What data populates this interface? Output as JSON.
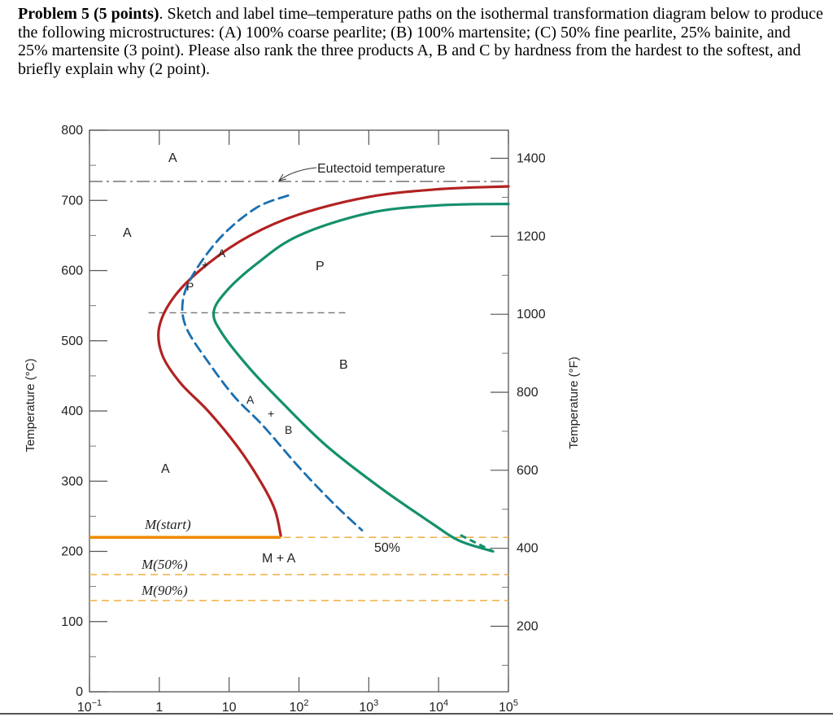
{
  "problem": {
    "heading": "Problem 5 (5 points)",
    "text": ". Sketch and label time–temperature paths on the isothermal transformation diagram below to produce the following microstructures: (A) 100% coarse pearlite; (B) 100% martensite; (C) 50% fine pearlite, 25% bainite, and 25% martensite (3 point). Please also rank the three products A, B and C by hardness from the hardest to the softest, and briefly explain why (2 point)."
  },
  "chart_data": {
    "type": "line",
    "xscale": "log",
    "xlim": [
      0.1,
      100000
    ],
    "ylim": [
      0,
      800
    ],
    "x_ticks": [
      {
        "value": 0.1,
        "base": "10",
        "exp": "−1"
      },
      {
        "value": 1,
        "base": "1",
        "exp": ""
      },
      {
        "value": 10,
        "base": "10",
        "exp": ""
      },
      {
        "value": 100,
        "base": "10",
        "exp": "2"
      },
      {
        "value": 1000,
        "base": "10",
        "exp": "3"
      },
      {
        "value": 10000,
        "base": "10",
        "exp": "4"
      },
      {
        "value": 100000,
        "base": "10",
        "exp": "5"
      }
    ],
    "y_ticks_c": [
      "0",
      "100",
      "200",
      "300",
      "400",
      "500",
      "600",
      "700",
      "800"
    ],
    "y_ticks_f": [
      "200",
      "400",
      "600",
      "800",
      "1000",
      "1200",
      "1400"
    ],
    "ylabel_left": "Temperature (°C)",
    "ylabel_right": "Temperature (°F)",
    "reference_lines": {
      "eutectoid_temp_c": 727,
      "m_start_c": 220,
      "m50_c": 167,
      "m90_c": 130,
      "nose_dashed_c": 540
    },
    "series": [
      {
        "role": "start",
        "color": "#b22222",
        "points": [
          [
            100000,
            720
          ],
          [
            10000,
            716
          ],
          [
            1000,
            705
          ],
          [
            100,
            680
          ],
          [
            20,
            650
          ],
          [
            5,
            610
          ],
          [
            1.7,
            565
          ],
          [
            1.0,
            520
          ],
          [
            1.1,
            480
          ],
          [
            2.0,
            440
          ],
          [
            5.0,
            400
          ],
          [
            13,
            350
          ],
          [
            28,
            300
          ],
          [
            45,
            260
          ],
          [
            55,
            222
          ]
        ]
      },
      {
        "role": "50-percent",
        "color": "#1a6fb0",
        "points": [
          [
            70,
            707
          ],
          [
            25,
            690
          ],
          [
            8,
            650
          ],
          [
            3.3,
            600
          ],
          [
            2.2,
            560
          ],
          [
            2.4,
            520
          ],
          [
            5,
            470
          ],
          [
            12,
            420
          ],
          [
            30,
            380
          ],
          [
            100,
            320
          ],
          [
            300,
            270
          ],
          [
            800,
            230
          ]
        ]
      },
      {
        "role": "finish",
        "color": "#14906c",
        "points": [
          [
            100000,
            695
          ],
          [
            10000,
            693
          ],
          [
            1000,
            682
          ],
          [
            100,
            650
          ],
          [
            25,
            610
          ],
          [
            9,
            570
          ],
          [
            6,
            540
          ],
          [
            8,
            510
          ],
          [
            20,
            460
          ],
          [
            60,
            410
          ],
          [
            250,
            350
          ],
          [
            1500,
            290
          ],
          [
            8000,
            240
          ],
          [
            20000,
            215
          ],
          [
            60000,
            200
          ]
        ]
      }
    ],
    "annotations": {
      "A_top": "A",
      "A_left": "A",
      "A_low": "A",
      "eutectoid": "Eutectoid temperature",
      "P": "P",
      "B": "B",
      "inner_A1": "A",
      "inner_P": "P",
      "inner_A2": "A",
      "inner_B": "B",
      "plus": "+",
      "m_start": "M(start)",
      "m50": "M(50%)",
      "m90": "M(90%)",
      "m_plus_a": "M + A",
      "fifty": "50%"
    }
  }
}
